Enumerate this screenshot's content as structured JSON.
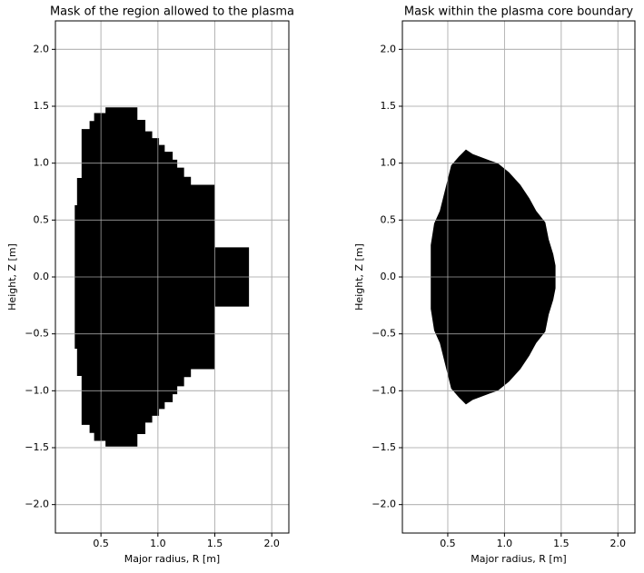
{
  "chart_data": [
    {
      "type": "mask",
      "title": "Mask of the region allowed to the plasma",
      "xlabel": "Major radius, R [m]",
      "ylabel": "Height, Z [m]",
      "color": "#000000",
      "grid": true,
      "xlim": [
        0.1,
        2.15
      ],
      "ylim": [
        -2.25,
        2.25
      ],
      "xticks": [
        0.5,
        {
          "value": 1,
          "label": "1.0"
        },
        1.5,
        {
          "value": 2,
          "label": "2.0"
        }
      ],
      "yticks": [
        {
          "value": -2,
          "label": "−2.0"
        },
        {
          "value": -1.5,
          "label": "−1.5"
        },
        {
          "value": -1,
          "label": "−1.0"
        },
        {
          "value": -0.5,
          "label": "−0.5"
        },
        {
          "value": 0,
          "label": "0.0"
        },
        0.5,
        {
          "value": 1,
          "label": "1.0"
        },
        1.5,
        {
          "value": 2,
          "label": "2.0"
        }
      ],
      "x": [
        0.54,
        0.82,
        0.82,
        0.89,
        0.89,
        0.95,
        0.95,
        1.01,
        1.01,
        1.06,
        1.06,
        1.13,
        1.13,
        1.17,
        1.17,
        1.23,
        1.23,
        1.29,
        1.29,
        1.5,
        1.5,
        1.8,
        1.8,
        1.5,
        1.5,
        1.29,
        1.29,
        1.23,
        1.23,
        1.17,
        1.17,
        1.13,
        1.13,
        1.06,
        1.06,
        1.01,
        1.01,
        0.95,
        0.95,
        0.89,
        0.89,
        0.82,
        0.82,
        0.54,
        0.54,
        0.44,
        0.44,
        0.4,
        0.4,
        0.33,
        0.33,
        0.29,
        0.29,
        0.27,
        0.27,
        0.29,
        0.29,
        0.33,
        0.33,
        0.4,
        0.4,
        0.44,
        0.44,
        0.54
      ],
      "y": [
        1.49,
        1.49,
        1.38,
        1.38,
        1.28,
        1.28,
        1.22,
        1.22,
        1.16,
        1.16,
        1.1,
        1.1,
        1.03,
        1.03,
        0.96,
        0.96,
        0.88,
        0.88,
        0.81,
        0.81,
        0.26,
        0.26,
        -0.26,
        -0.26,
        -0.81,
        -0.81,
        -0.88,
        -0.88,
        -0.96,
        -0.96,
        -1.03,
        -1.03,
        -1.1,
        -1.1,
        -1.16,
        -1.16,
        -1.22,
        -1.22,
        -1.28,
        -1.28,
        -1.38,
        -1.38,
        -1.49,
        -1.49,
        -1.44,
        -1.44,
        -1.37,
        -1.37,
        -1.3,
        -1.3,
        -0.87,
        -0.87,
        -0.63,
        -0.63,
        0.63,
        0.63,
        0.87,
        0.87,
        1.3,
        1.3,
        1.37,
        1.37,
        1.44,
        1.44
      ]
    },
    {
      "type": "mask",
      "title": "Mask within the plasma core boundary",
      "xlabel": "Major radius, R [m]",
      "ylabel": "Height, Z [m]",
      "color": "#000000",
      "grid": true,
      "xlim": [
        0.1,
        2.15
      ],
      "ylim": [
        -2.25,
        2.25
      ],
      "xticks": [
        0.5,
        {
          "value": 1,
          "label": "1.0"
        },
        1.5,
        {
          "value": 2,
          "label": "2.0"
        }
      ],
      "yticks": [
        {
          "value": -2,
          "label": "−2.0"
        },
        {
          "value": -1.5,
          "label": "−1.5"
        },
        {
          "value": -1,
          "label": "−1.0"
        },
        {
          "value": -0.5,
          "label": "−0.5"
        },
        {
          "value": 0,
          "label": "0.0"
        },
        0.5,
        {
          "value": 1,
          "label": "1.0"
        },
        1.5,
        {
          "value": 2,
          "label": "2.0"
        }
      ],
      "x": [
        0.66,
        0.72,
        0.8,
        0.88,
        0.94,
        1.04,
        1.14,
        1.22,
        1.28,
        1.36,
        1.39,
        1.43,
        1.45,
        1.45,
        1.43,
        1.39,
        1.36,
        1.28,
        1.22,
        1.14,
        1.04,
        0.94,
        0.88,
        0.8,
        0.72,
        0.66,
        0.6,
        0.53,
        0.48,
        0.43,
        0.38,
        0.35,
        0.35,
        0.38,
        0.43,
        0.48,
        0.53,
        0.6
      ],
      "y": [
        1.12,
        1.08,
        1.05,
        1.02,
        1.0,
        0.92,
        0.81,
        0.69,
        0.58,
        0.48,
        0.33,
        0.2,
        0.1,
        -0.1,
        -0.2,
        -0.33,
        -0.48,
        -0.58,
        -0.69,
        -0.81,
        -0.92,
        -1.0,
        -1.02,
        -1.05,
        -1.08,
        -1.12,
        -1.06,
        -0.98,
        -0.78,
        -0.58,
        -0.47,
        -0.28,
        0.28,
        0.47,
        0.58,
        0.78,
        0.98,
        1.06
      ]
    }
  ]
}
